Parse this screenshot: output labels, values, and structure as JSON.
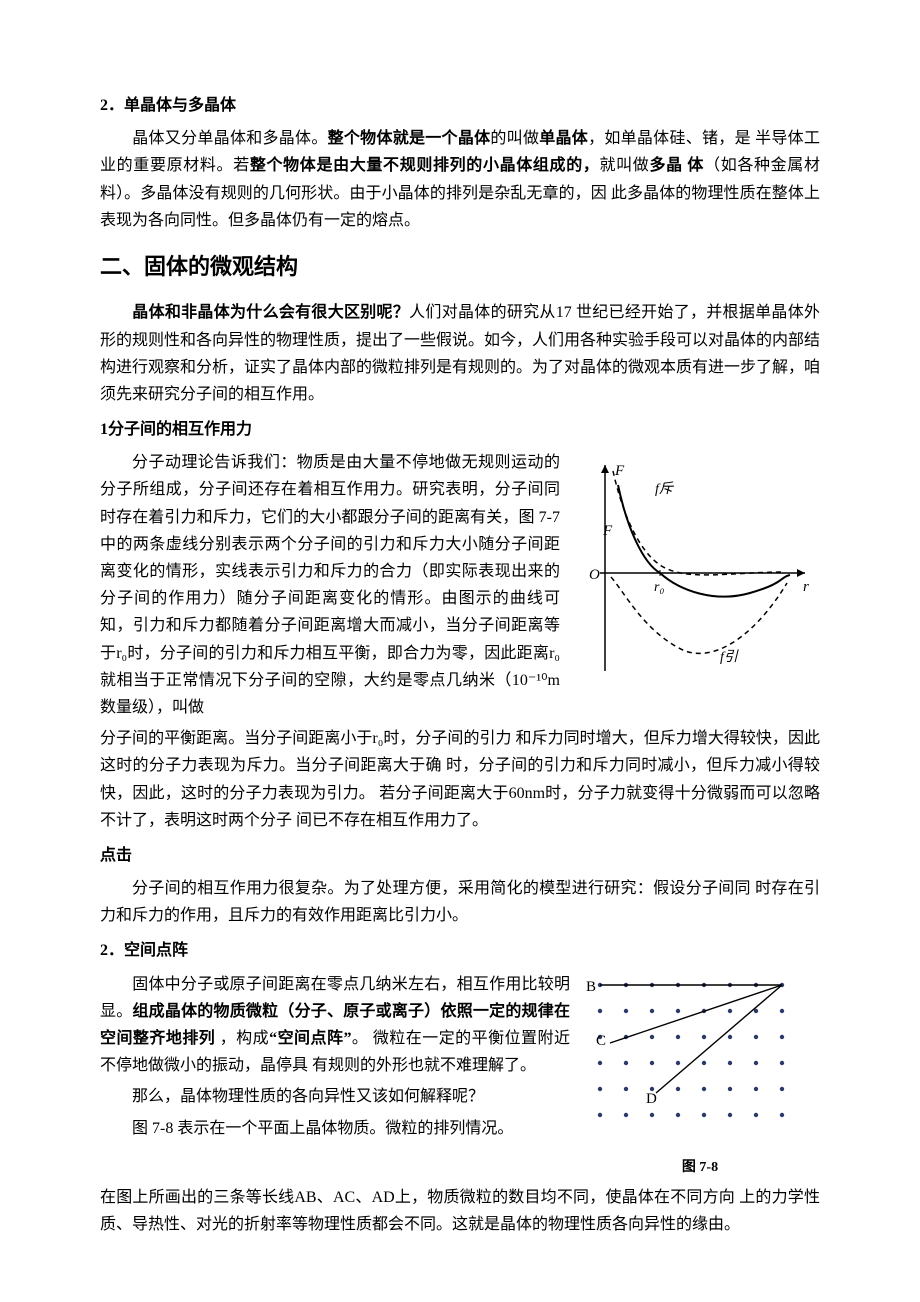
{
  "section1": {
    "heading": "2．单晶体与多晶体",
    "p1_a": "晶体又分单晶体和多晶体。",
    "p1_b": "整个物体就是一个晶体",
    "p1_c": "的叫做",
    "p1_d": "单晶体",
    "p1_e": "，如单晶体硅、锗，是 半导体工业的重要原材料。若",
    "p1_f": "整个物体是由大量不规则排列的小晶体组成的，",
    "p1_g": "就叫做",
    "p1_h": "多晶 体",
    "p1_i": "（如各种金属材料）。多晶体没有规则的几何形状。由于小晶体的排列是杂乱无章的，因 此多晶体的物理性质在整体上表现为各向同性。但多晶体仍有一定的熔点。"
  },
  "section2": {
    "heading": "二、固体的微观结构",
    "intro_a": "晶体和非晶体为什么会有很大区别呢？",
    "intro_b": "人们对晶体的研究从17  世纪已经开始了，并根据单晶体外形的规则性和各向异性的物理性质，提出了一些假说。如今，人们用各种实验手段可以对晶体的内部结构进行观察和分析，证实了晶体内部的微粒排列是有规则的。为了对晶体的微观本质有进一步了解，咱须先来研究分子间的相互作用。"
  },
  "sub1": {
    "heading": "1分子间的相互作用力",
    "p1": "分子动理论告诉我们：物质是由大量不停地做无规则运动的分子所组成，分子间还存在着相互作用力。研究表明，分子间同时存在着引力和斥力，它们的大小都跟分子间的距离有关，图 7-7中的两条虚线分别表示两个分子间的引力和斥力大小随分子间距离变化的情形，实线表示引力和斥力的合力（即实际表现出来的分子间的作用力）随分子间距离变化的情形。由图示的曲线可知，引力和斥力都随着分子间距离增大而减小，当分子间距离等于r₀时，分子间的引力和斥力相互平衡，即合力为零，因此距离r₀就相当于正常情况下分子间的空隙，大约是零点几纳米（10⁻¹⁰m数量级），叫做",
    "p2": "分子间的平衡距离。当分子间距离小于r₀时，分子间的引力 和斥力同时增大，但斥力增大得较快，因此这时的分子力表现为斥力。当分子间距离大于确 时，分子间的引力和斥力同时减小，但斥力减小得较快，因此，这时的分子力表现为引力。 若分子间距离大于60nm时，分子力就变得十分微弱而可以忽略不计了，表明这时两个分子 间已不存在相互作用力了。"
  },
  "dianji": {
    "heading": "点击",
    "p": "分子间的相互作用力很复杂。为了处理方便，采用简化的模型进行研究：假设分子间同 时存在引力和斥力的作用，且斥力的有效作用距离比引力小。"
  },
  "sub2": {
    "heading": "2．空间点阵",
    "p1_a": "固体中分子或原子间距离在零点几纳米左右，相互作用比较明显。",
    "p1_b": "组成晶体的物质微粒（分子、原子或离子）依照一定的规律在空间整齐地排列 ",
    "p1_c": "，构成",
    "p1_d": "“空间点阵”",
    "p1_e": "。 微粒在一定的平衡位置附近不停地做微小的振动，晶停具 有规则的外形也就不难理解了。",
    "p2": "那么，晶体物理性质的各向异性又该如何解释呢？",
    "p3": "图 7-8 表示在一个平面上晶体物质。微粒的排列情况。",
    "p4": "在图上所画出的三条等长线AB、AC、AD上，物质微粒的数目均不同，使晶体在不同方向 上的力学性质、导热性、对光的折射率等物理性质都会不同。这就是晶体的物理性质各向异性的缘由。"
  },
  "fig77": {
    "axis_y": "F",
    "axis_x": "r",
    "label_repulsion": "f斥",
    "label_sum": "F",
    "label_attraction": "f引",
    "origin": "O",
    "r0": "r₀",
    "colors": {
      "stroke": "#000000",
      "bg": "#ffffff"
    },
    "line_width_solid": 2,
    "line_width_dash": 1.5,
    "dash": "5,4"
  },
  "fig78": {
    "caption": "图 7-8",
    "labels": {
      "B": "B",
      "C": "C",
      "D": "D"
    },
    "dot_color": "#2b3a6b",
    "line_color": "#000000",
    "cols": 8,
    "rows": 6,
    "spacing": 26,
    "margin": 20,
    "dot_r": 2.2
  }
}
